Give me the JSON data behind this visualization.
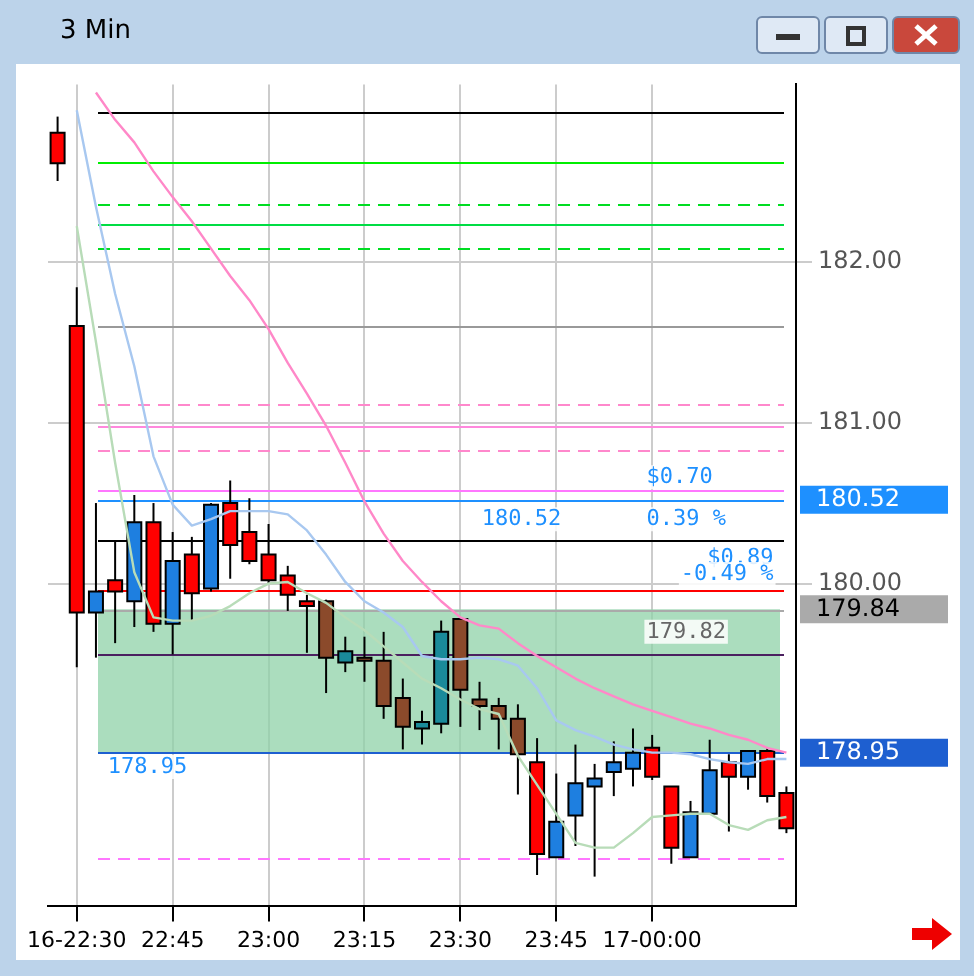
{
  "chart_data": {
    "type": "candlestick",
    "title": "3 Min",
    "categories": [
      null,
      "16-22:30",
      null,
      null,
      null,
      null,
      "22:45",
      null,
      null,
      null,
      null,
      "23:00",
      null,
      null,
      null,
      null,
      "23:15",
      null,
      null,
      null,
      null,
      "23:30",
      null,
      null,
      null,
      null,
      "23:45",
      null,
      null,
      null,
      null,
      "17-00:00",
      null,
      null,
      null,
      null,
      null,
      null,
      null
    ],
    "ohlc": [
      [
        182.8,
        182.9,
        182.5,
        182.61
      ],
      [
        181.6,
        181.84,
        179.48,
        179.82
      ],
      [
        179.82,
        180.5,
        179.54,
        179.95
      ],
      [
        180.02,
        180.26,
        179.63,
        179.95
      ],
      [
        179.89,
        180.55,
        179.73,
        180.38
      ],
      [
        180.38,
        180.5,
        179.7,
        179.75
      ],
      [
        179.75,
        180.32,
        179.56,
        180.14
      ],
      [
        180.18,
        180.29,
        179.77,
        179.94
      ],
      [
        179.97,
        180.5,
        179.95,
        180.49
      ],
      [
        180.5,
        180.64,
        180.03,
        180.24
      ],
      [
        180.32,
        180.53,
        180.12,
        180.14
      ],
      [
        180.18,
        180.37,
        180.0,
        180.02
      ],
      [
        180.05,
        180.11,
        179.83,
        179.93
      ],
      [
        179.89,
        179.93,
        179.57,
        179.86
      ],
      [
        179.89,
        179.9,
        179.32,
        179.54
      ],
      [
        179.51,
        179.67,
        179.45,
        179.58
      ],
      [
        179.54,
        179.67,
        179.39,
        179.53
      ],
      [
        179.52,
        179.7,
        179.16,
        179.24
      ],
      [
        179.29,
        179.41,
        178.97,
        179.11
      ],
      [
        179.1,
        179.21,
        179.0,
        179.14
      ],
      [
        179.13,
        179.77,
        179.07,
        179.7
      ],
      [
        179.78,
        179.79,
        179.11,
        179.34
      ],
      [
        179.28,
        179.39,
        179.09,
        179.24
      ],
      [
        179.24,
        179.29,
        178.97,
        179.16
      ],
      [
        179.16,
        179.25,
        178.69,
        178.94
      ],
      [
        178.89,
        179.04,
        178.19,
        178.32
      ],
      [
        178.3,
        178.82,
        178.3,
        178.52
      ],
      [
        178.56,
        179.0,
        178.37,
        178.76
      ],
      [
        178.74,
        178.88,
        178.18,
        178.79
      ],
      [
        178.83,
        179.02,
        178.68,
        178.89
      ],
      [
        178.85,
        179.1,
        178.74,
        178.95
      ],
      [
        178.98,
        179.06,
        178.78,
        178.8
      ],
      [
        178.74,
        178.74,
        178.26,
        178.36
      ],
      [
        178.3,
        178.65,
        178.3,
        178.58
      ],
      [
        178.57,
        179.03,
        178.57,
        178.84
      ],
      [
        178.89,
        178.94,
        178.46,
        178.8
      ],
      [
        178.8,
        178.96,
        178.72,
        178.96
      ],
      [
        178.96,
        178.98,
        178.64,
        178.68
      ],
      [
        178.7,
        178.74,
        178.45,
        178.48
      ]
    ],
    "colors": [
      "#ff0000",
      "#ff0000",
      "#1e7fe0",
      "#ff0000",
      "#1e7fe0",
      "#ff0000",
      "#1e7fe0",
      "#ff0000",
      "#1e7fe0",
      "#ff0000",
      "#ff0000",
      "#ff0000",
      "#ff0000",
      "#ff0000",
      "#8b4a2b",
      "#1a8a9a",
      "#8b4a2b",
      "#8b4a2b",
      "#8b4a2b",
      "#1a8a9a",
      "#1a8a9a",
      "#8b4a2b",
      "#8b4a2b",
      "#8b4a2b",
      "#8b4a2b",
      "#ff0000",
      "#1e7fe0",
      "#1e7fe0",
      "#1e7fe0",
      "#1e7fe0",
      "#1e7fe0",
      "#ff0000",
      "#ff0000",
      "#1e7fe0",
      "#1e7fe0",
      "#ff0000",
      "#1e7fe0",
      "#ff0000",
      "#ff0000"
    ],
    "series": [
      {
        "type": "line",
        "color": "#a8c8f0",
        "values": [
          null,
          182.94,
          182.34,
          181.8,
          181.35,
          180.79,
          180.49,
          180.36,
          180.4,
          180.45,
          180.45,
          180.45,
          180.43,
          180.33,
          180.18,
          180.01,
          179.89,
          179.82,
          179.73,
          179.55,
          179.53,
          179.53,
          179.54,
          179.53,
          179.49,
          179.35,
          179.15,
          179.09,
          179.05,
          179.0,
          178.97,
          178.95,
          178.95,
          178.94,
          178.91,
          178.89,
          178.88,
          178.91,
          178.91
        ]
      },
      {
        "type": "line",
        "color": "#ff88c8",
        "values": [
          null,
          null,
          183.05,
          182.88,
          182.74,
          182.56,
          182.4,
          182.25,
          182.08,
          181.91,
          181.76,
          181.58,
          181.37,
          181.18,
          180.98,
          180.75,
          180.51,
          180.31,
          180.14,
          180.01,
          179.89,
          179.79,
          179.74,
          179.72,
          179.63,
          179.55,
          179.48,
          179.41,
          179.35,
          179.3,
          179.25,
          179.21,
          179.17,
          179.13,
          179.1,
          179.06,
          179.03,
          178.98,
          178.95
        ]
      },
      {
        "type": "line",
        "color": "#b8dcb8",
        "values": [
          null,
          182.22,
          181.5,
          180.75,
          180.07,
          179.79,
          179.77,
          179.77,
          179.8,
          179.86,
          179.94,
          180.0,
          180.01,
          179.94,
          179.88,
          179.79,
          179.71,
          179.61,
          179.51,
          179.41,
          179.35,
          179.28,
          179.22,
          179.19,
          178.93,
          178.75,
          178.57,
          178.39,
          178.36,
          178.36,
          178.45,
          178.55,
          178.56,
          178.57,
          178.57,
          178.5,
          178.47,
          178.53,
          178.55
        ]
      }
    ],
    "ylim": [
      178.0,
      183.1
    ],
    "yticks": [
      {
        "value": 180,
        "label": "180.00"
      },
      {
        "value": 181,
        "label": "181.00"
      },
      {
        "value": 182,
        "label": "182.00"
      }
    ],
    "grid": true,
    "bands": [
      {
        "axis": "y",
        "from": 178.95,
        "to": 179.84,
        "color": "#8fd1a8"
      }
    ],
    "ref_lines": [
      {
        "axis": "y",
        "value": 182.93,
        "color": "#000000"
      },
      {
        "axis": "y",
        "value": 182.62,
        "color": "#00ee00"
      },
      {
        "axis": "y",
        "value": 182.36,
        "color": "#00dd22",
        "line_style": "dashed"
      },
      {
        "axis": "y",
        "value": 182.23,
        "color": "#00dd44"
      },
      {
        "axis": "y",
        "value": 182.09,
        "color": "#00dd22",
        "line_style": "dashed"
      },
      {
        "axis": "y",
        "value": 181.6,
        "color": "#999999"
      },
      {
        "axis": "y",
        "value": 181.11,
        "color": "#ff88cc",
        "line_style": "dashed"
      },
      {
        "axis": "y",
        "value": 180.98,
        "color": "#ff88dd"
      },
      {
        "axis": "y",
        "value": 180.83,
        "color": "#ff88cc",
        "line_style": "dashed"
      },
      {
        "axis": "y",
        "value": 180.58,
        "color": "#ff77ff"
      },
      {
        "axis": "y",
        "value": 180.52,
        "label": "180.52",
        "color": "#1e90ff"
      },
      {
        "axis": "y",
        "value": 180.27,
        "color": "#000000"
      },
      {
        "axis": "y",
        "value": 179.96,
        "color": "#ff0000"
      },
      {
        "axis": "y",
        "value": 179.84,
        "label": "179.84",
        "color": "#aaaaaa"
      },
      {
        "axis": "y",
        "value": 179.56,
        "color": "#4b2060"
      },
      {
        "axis": "y",
        "value": 178.95,
        "label": "178.95",
        "color": "#1e5fd0"
      },
      {
        "axis": "y",
        "value": 178.3,
        "color": "#ff77ff",
        "line_style": "dashed"
      }
    ],
    "annotations": [
      "180.52",
      "$0.70",
      "0.39 %",
      "179.82",
      "178.95",
      "$0.89",
      "-0.49 %"
    ]
  }
}
